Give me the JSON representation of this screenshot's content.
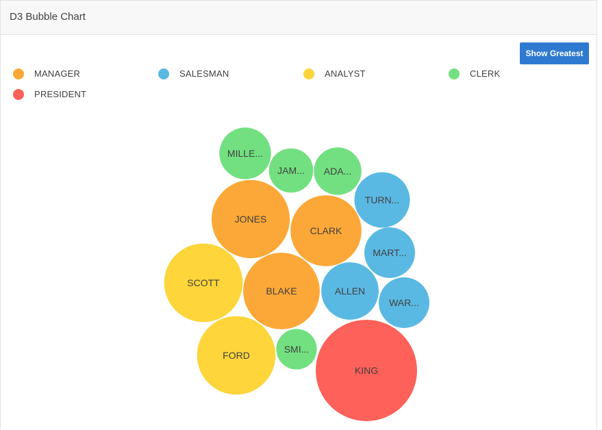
{
  "region": {
    "title": "D3 Bubble Chart"
  },
  "toolbar": {
    "show_greatest_label": "Show Greatest"
  },
  "colors": {
    "MANAGER": "#fca838",
    "SALESMAN": "#5ab9e3",
    "ANALYST": "#fed53a",
    "CLERK": "#72e080",
    "PRESIDENT": "#fe6159"
  },
  "legend": [
    {
      "label": "MANAGER",
      "color": "#fca838"
    },
    {
      "label": "SALESMAN",
      "color": "#5ab9e3"
    },
    {
      "label": "ANALYST",
      "color": "#fed53a"
    },
    {
      "label": "CLERK",
      "color": "#72e080"
    },
    {
      "label": "PRESIDENT",
      "color": "#fe6159"
    }
  ],
  "chart_data": {
    "type": "bubble",
    "title": "D3 Bubble Chart",
    "categories": [
      "MANAGER",
      "SALESMAN",
      "ANALYST",
      "CLERK",
      "PRESIDENT"
    ],
    "bubbles": [
      {
        "label": "MILLE...",
        "category": "CLERK",
        "value": 1300
      },
      {
        "label": "JAM...",
        "category": "CLERK",
        "value": 950
      },
      {
        "label": "ADA...",
        "category": "CLERK",
        "value": 1100
      },
      {
        "label": "TURN...",
        "category": "SALESMAN",
        "value": 1500
      },
      {
        "label": "JONES",
        "category": "MANAGER",
        "value": 2975
      },
      {
        "label": "CLARK",
        "category": "MANAGER",
        "value": 2450
      },
      {
        "label": "MART...",
        "category": "SALESMAN",
        "value": 1250
      },
      {
        "label": "SCOTT",
        "category": "ANALYST",
        "value": 3000
      },
      {
        "label": "BLAKE",
        "category": "MANAGER",
        "value": 2850
      },
      {
        "label": "ALLEN",
        "category": "SALESMAN",
        "value": 1600
      },
      {
        "label": "WAR...",
        "category": "SALESMAN",
        "value": 1250
      },
      {
        "label": "FORD",
        "category": "ANALYST",
        "value": 3000
      },
      {
        "label": "SMI...",
        "category": "CLERK",
        "value": 800
      },
      {
        "label": "KING",
        "category": "PRESIDENT",
        "value": 5000
      }
    ]
  }
}
